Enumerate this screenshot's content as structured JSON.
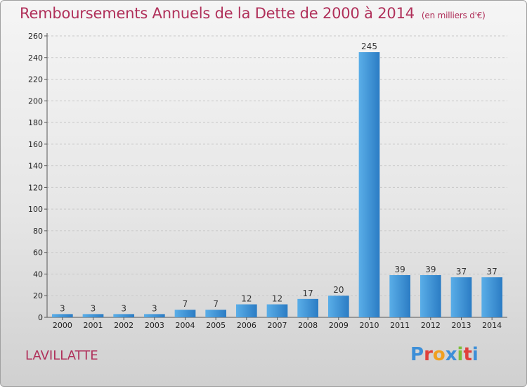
{
  "header": {
    "title": "Remboursements Annuels de la Dette de 2000 à 2014",
    "unit": "(en milliers d'€)"
  },
  "footer": {
    "commune": "LAVILLATTE",
    "logo_text": "Proxiti"
  },
  "colors": {
    "title": "#b0305a",
    "bar_light": "#5aaee8",
    "bar_dark": "#2b7cc4",
    "logo_letters": [
      "#3d8fd8",
      "#e0403a",
      "#f0a020",
      "#3d8fd8",
      "#7cbf3a",
      "#e0403a",
      "#3d8fd8"
    ]
  },
  "chart_data": {
    "type": "bar",
    "title": "Remboursements Annuels de la Dette de 2000 à 2014",
    "subtitle": "(en milliers d'€)",
    "xlabel": "",
    "ylabel": "",
    "categories": [
      "2000",
      "2001",
      "2002",
      "2003",
      "2004",
      "2005",
      "2006",
      "2007",
      "2008",
      "2009",
      "2010",
      "2011",
      "2012",
      "2013",
      "2014"
    ],
    "values": [
      3,
      3,
      3,
      3,
      7,
      7,
      12,
      12,
      17,
      20,
      245,
      39,
      39,
      37,
      37
    ],
    "ylim": [
      0,
      260
    ],
    "yticks": [
      0,
      20,
      40,
      60,
      80,
      100,
      120,
      140,
      160,
      180,
      200,
      220,
      240,
      260
    ],
    "grid": true,
    "data_labels": true
  }
}
